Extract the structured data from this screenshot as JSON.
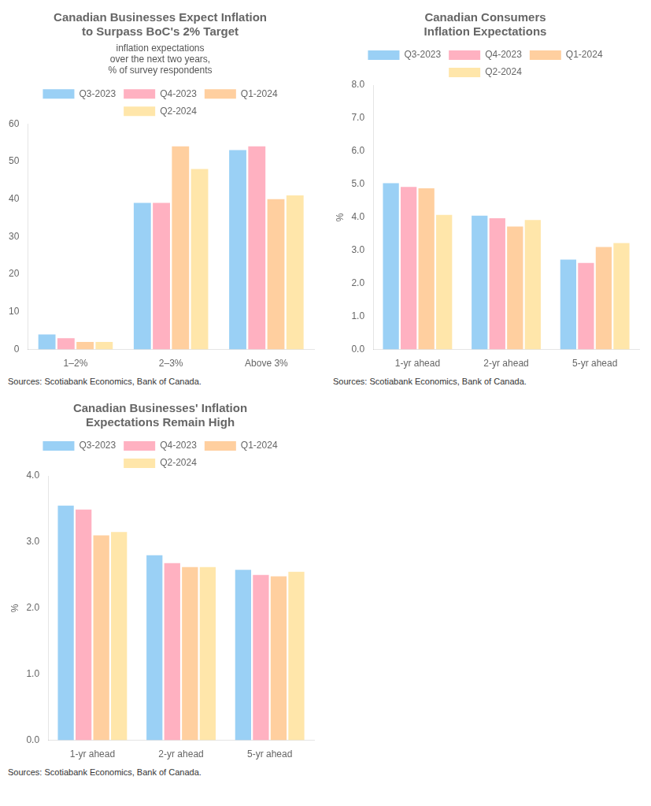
{
  "chart_data": [
    {
      "type": "bar",
      "title": "Canadian Businesses Expect Inflation\nto Surpass BoC's 2% Target",
      "annotation": "inflation expectations\nover the next two years,\n% of survey respondents",
      "source": "Sources: Scotiabank Economics, Bank of Canada.",
      "categories": [
        "1–2%",
        "2–3%",
        "Above 3%"
      ],
      "series": [
        {
          "name": "Q3-2023",
          "values": [
            4,
            39,
            53
          ]
        },
        {
          "name": "Q4-2023",
          "values": [
            3,
            39,
            54
          ]
        },
        {
          "name": "Q1-2024",
          "values": [
            2,
            54,
            40
          ]
        },
        {
          "name": "Q2-2024",
          "values": [
            2,
            48,
            41
          ]
        }
      ],
      "ylim": [
        0,
        60
      ],
      "yticks": [
        0,
        10,
        20,
        30,
        40,
        50,
        60
      ],
      "grid": false,
      "legend": "top"
    },
    {
      "type": "bar",
      "title": "Canadian Consumers\nInflation Expectations",
      "ylabel": "%",
      "source": "Sources: Scotiabank Economics, Bank of Canada.",
      "categories": [
        "1-yr ahead",
        "2-yr ahead",
        "5-yr ahead"
      ],
      "series": [
        {
          "name": "Q3-2023",
          "values": [
            5.03,
            4.05,
            2.72
          ]
        },
        {
          "name": "Q4-2023",
          "values": [
            4.92,
            3.97,
            2.62
          ]
        },
        {
          "name": "Q1-2024",
          "values": [
            4.88,
            3.72,
            3.1
          ]
        },
        {
          "name": "Q2-2024",
          "values": [
            4.07,
            3.92,
            3.22
          ]
        }
      ],
      "ylim": [
        0.0,
        8.0
      ],
      "yticks": [
        {
          "value": 0,
          "label": "0.0"
        },
        {
          "value": 1,
          "label": "1.0"
        },
        {
          "value": 2,
          "label": "2.0"
        },
        {
          "value": 3,
          "label": "3.0"
        },
        {
          "value": 4,
          "label": "4.0"
        },
        {
          "value": 5,
          "label": "5.0"
        },
        {
          "value": 6,
          "label": "6.0"
        },
        {
          "value": 7,
          "label": "7.0"
        },
        {
          "value": 8,
          "label": "8.0"
        }
      ],
      "grid": false,
      "legend": "top"
    },
    {
      "type": "bar",
      "title": "Canadian Businesses' Inflation\nExpectations Remain High",
      "ylabel": "%",
      "source": "Sources: Scotiabank Economics, Bank of Canada.",
      "categories": [
        "1-yr ahead",
        "2-yr ahead",
        "5-yr ahead"
      ],
      "series": [
        {
          "name": "Q3-2023",
          "values": [
            3.55,
            2.8,
            2.58
          ]
        },
        {
          "name": "Q4-2023",
          "values": [
            3.49,
            2.68,
            2.5
          ]
        },
        {
          "name": "Q1-2024",
          "values": [
            3.1,
            2.62,
            2.48
          ]
        },
        {
          "name": "Q2-2024",
          "values": [
            3.15,
            2.62,
            2.55
          ]
        }
      ],
      "ylim": [
        0.0,
        4.0
      ],
      "yticks": [
        {
          "value": 0,
          "label": "0.0"
        },
        {
          "value": 1,
          "label": "1.0"
        },
        {
          "value": 2,
          "label": "2.0"
        },
        {
          "value": 3,
          "label": "3.0"
        },
        {
          "value": 4,
          "label": "4.0"
        }
      ],
      "grid": false,
      "legend": "top"
    }
  ]
}
